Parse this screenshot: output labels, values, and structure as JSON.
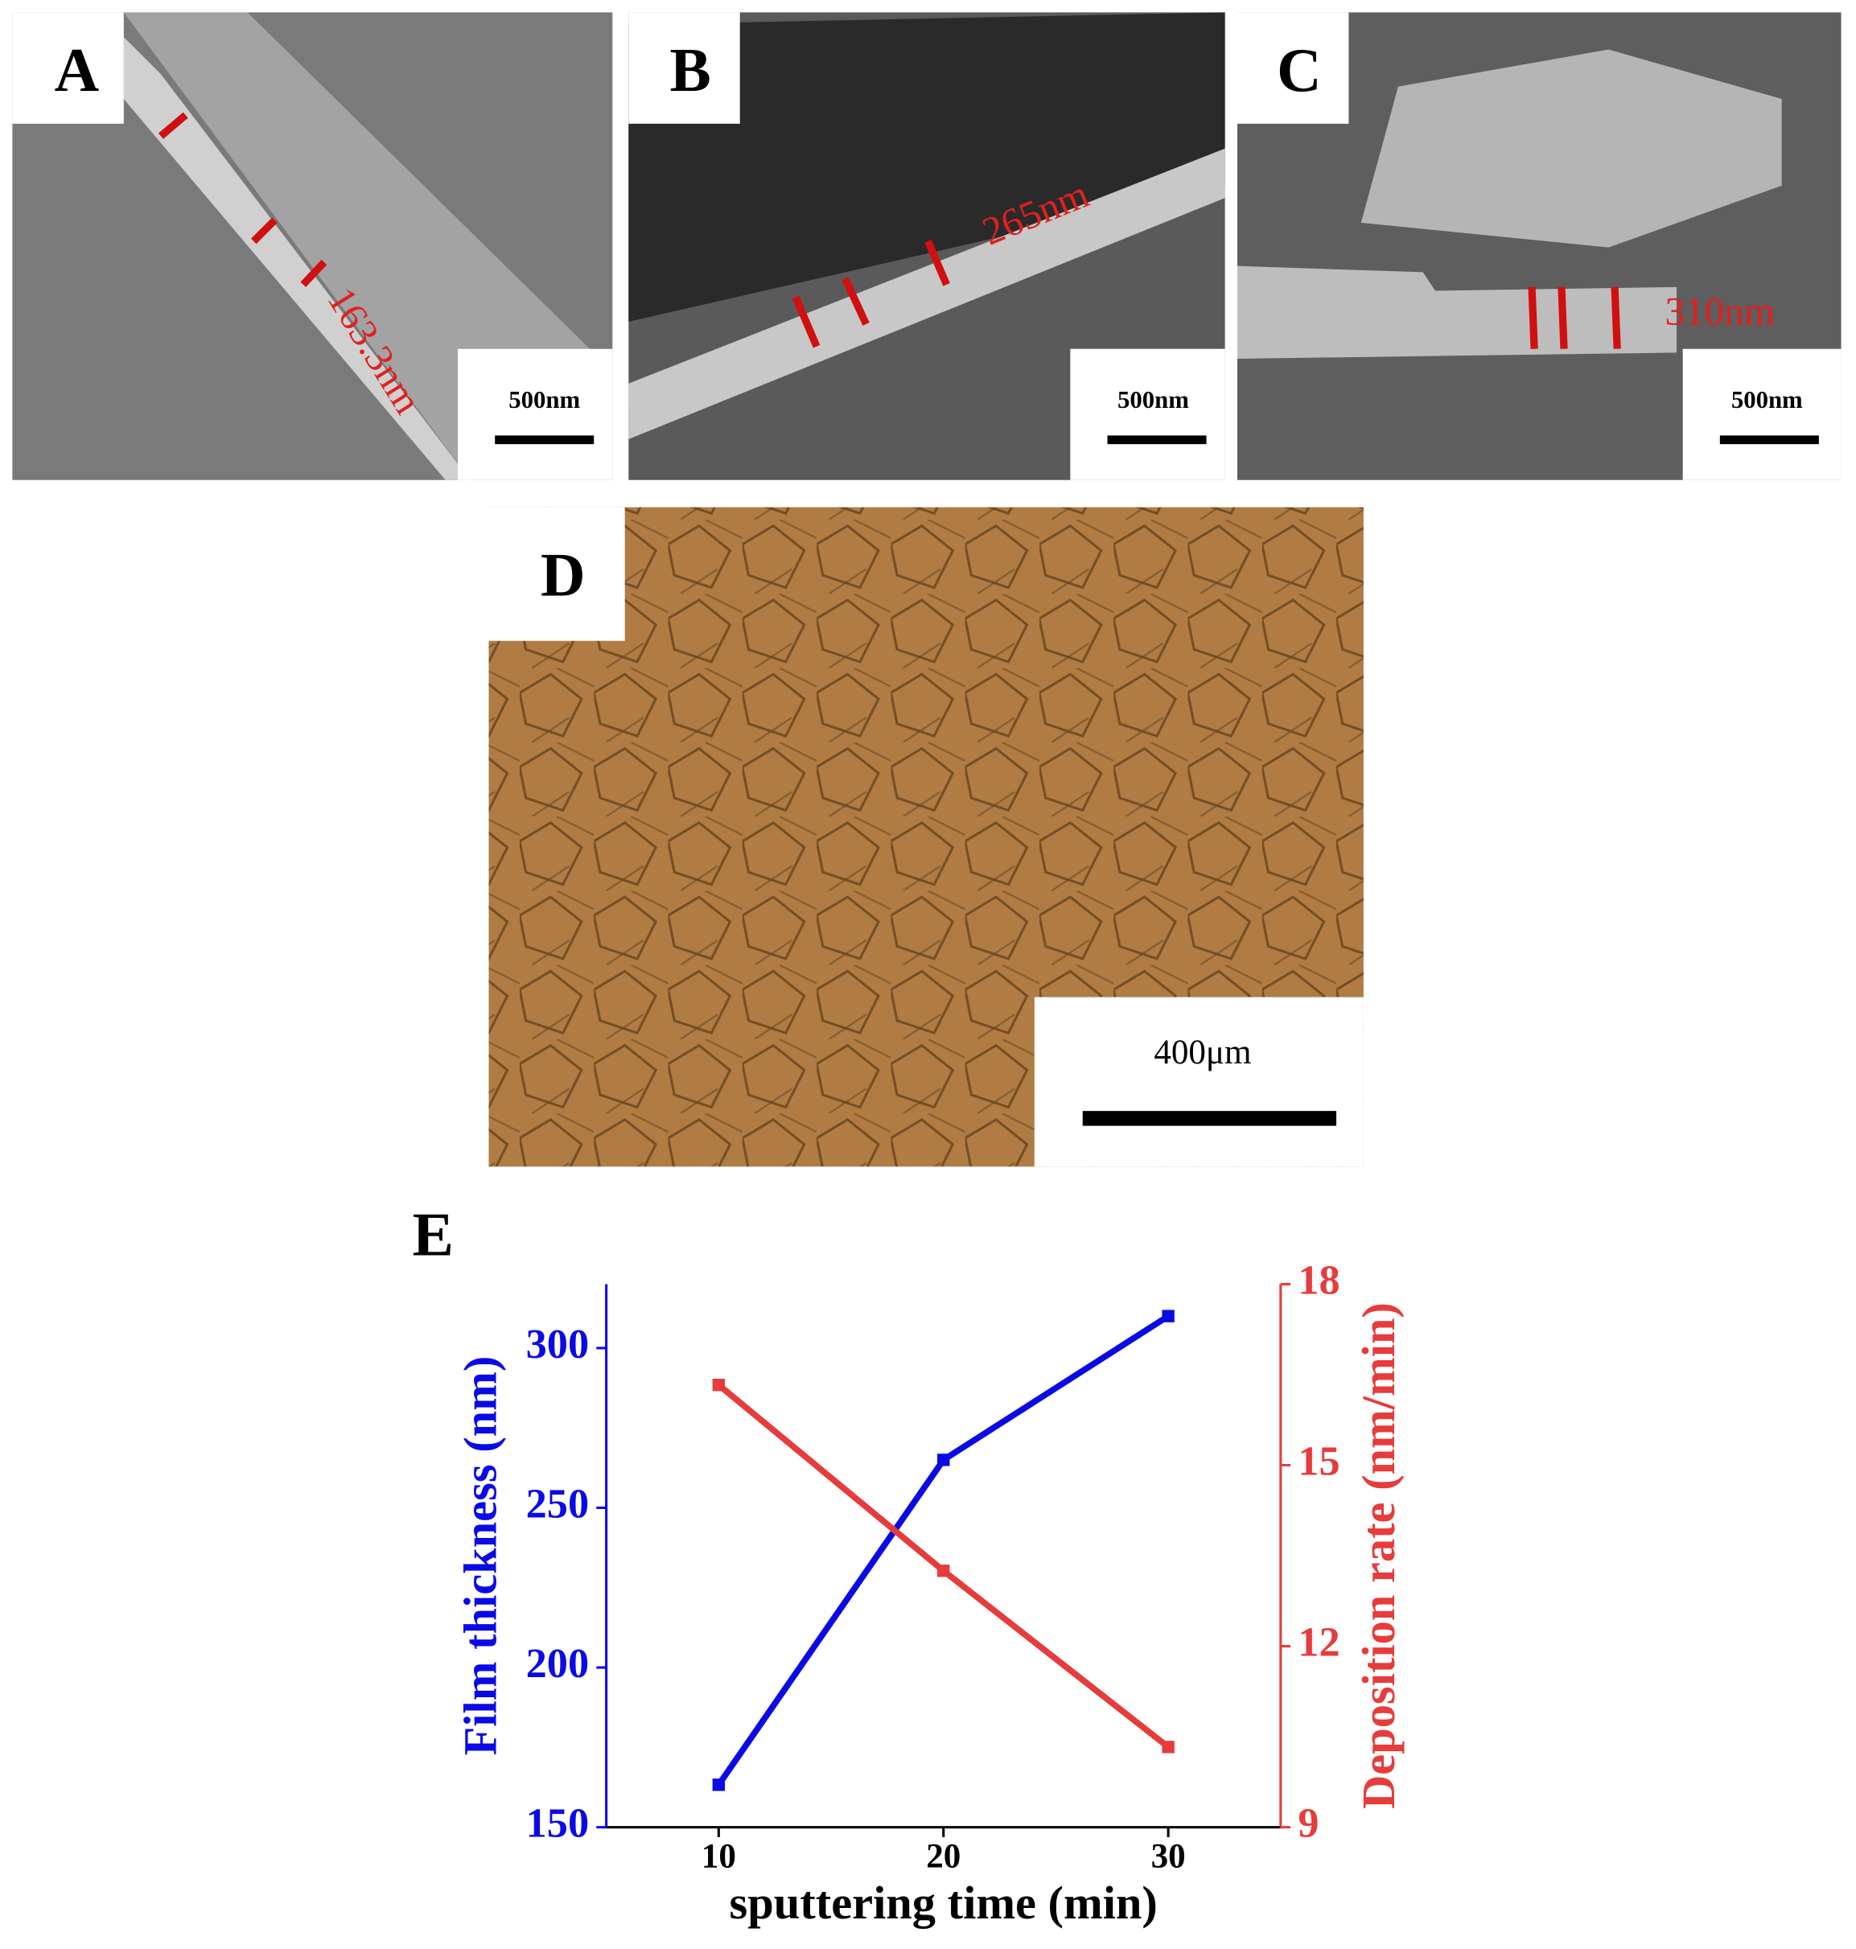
{
  "panels": [
    {
      "label": "A",
      "measurement": "163.3nm",
      "scale_bar": "500nm"
    },
    {
      "label": "B",
      "measurement": "265nm",
      "scale_bar": "500nm"
    },
    {
      "label": "C",
      "measurement": "310nm",
      "scale_bar": "500nm"
    },
    {
      "label": "D",
      "scale_bar": "400μm"
    }
  ],
  "chart_data": {
    "type": "line",
    "label": "E",
    "xlabel": "sputtering time (min)",
    "ylabel": "Film thickness (nm)",
    "y2label": "Deposition rate (nm/min)",
    "x": [
      10,
      20,
      30
    ],
    "xlim": [
      5,
      35
    ],
    "xticks": [
      10,
      20,
      30
    ],
    "ylim": [
      150,
      320
    ],
    "yticks": [
      150,
      200,
      250,
      300
    ],
    "y2lim": [
      9,
      18
    ],
    "y2ticks": [
      9,
      12,
      15,
      18
    ],
    "series": [
      {
        "color": "#0a0ae6",
        "values": [
          163.3,
          265,
          310
        ]
      },
      {
        "color": "#e63c3c",
        "axis": "y2",
        "values": [
          16.33,
          13.25,
          10.33
        ]
      }
    ]
  }
}
